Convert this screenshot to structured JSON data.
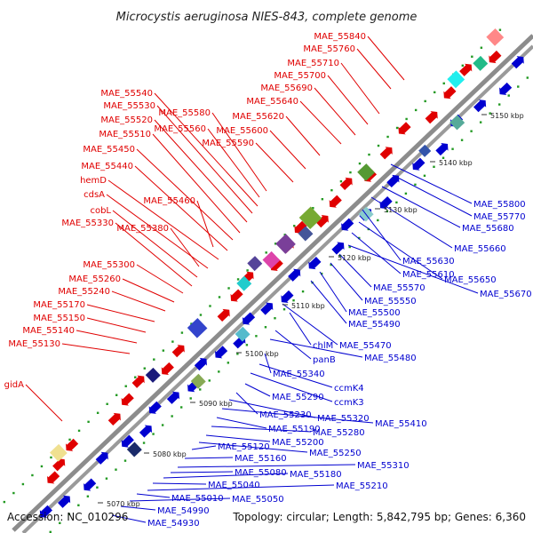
{
  "title": "Microcystis aeruginosa NIES-843, complete genome",
  "accession": "Accession: NC_010296",
  "summary": "Topology: circular; Length: 5,842,795 bp; Genes: 6,360",
  "colors": {
    "upper": "#e00000",
    "lower": "#0000d0",
    "axis": "#888888",
    "dots": "#229922"
  },
  "ticks": [
    "5070 kbp",
    "5080 kbp",
    "5090 kbp",
    "5100 kbp",
    "5110 kbp",
    "5120 kbp",
    "5130 kbp",
    "5140 kbp",
    "5150 kbp"
  ],
  "upper_labels": [
    {
      "name": "MAE_55840"
    },
    {
      "name": "MAE_55760"
    },
    {
      "name": "MAE_55710"
    },
    {
      "name": "MAE_55700"
    },
    {
      "name": "MAE_55690"
    },
    {
      "name": "MAE_55640"
    },
    {
      "name": "MAE_55620"
    },
    {
      "name": "MAE_55600"
    },
    {
      "name": "MAE_55590"
    },
    {
      "name": "MAE_55580"
    },
    {
      "name": "MAE_55560"
    },
    {
      "name": "MAE_55540"
    },
    {
      "name": "MAE_55530"
    },
    {
      "name": "MAE_55520"
    },
    {
      "name": "MAE_55510"
    },
    {
      "name": "MAE_55450"
    },
    {
      "name": "MAE_55440"
    },
    {
      "name": "hemD"
    },
    {
      "name": "cdsA"
    },
    {
      "name": "MAE_55460"
    },
    {
      "name": "cobL"
    },
    {
      "name": "MAE_55330"
    },
    {
      "name": "MAE_55380"
    },
    {
      "name": "MAE_55300"
    },
    {
      "name": "MAE_55260"
    },
    {
      "name": "MAE_55240"
    },
    {
      "name": "MAE_55170"
    },
    {
      "name": "MAE_55150"
    },
    {
      "name": "MAE_55140"
    },
    {
      "name": "MAE_55130"
    },
    {
      "name": "gidA"
    }
  ],
  "lower_labels": [
    {
      "name": "MAE_55800"
    },
    {
      "name": "MAE_55770"
    },
    {
      "name": "MAE_55680"
    },
    {
      "name": "MAE_55660"
    },
    {
      "name": "MAE_55630"
    },
    {
      "name": "MAE_55650"
    },
    {
      "name": "MAE_55610"
    },
    {
      "name": "MAE_55670"
    },
    {
      "name": "MAE_55570"
    },
    {
      "name": "MAE_55550"
    },
    {
      "name": "MAE_55500"
    },
    {
      "name": "MAE_55490"
    },
    {
      "name": "chlM"
    },
    {
      "name": "MAE_55470"
    },
    {
      "name": "panB"
    },
    {
      "name": "MAE_55480"
    },
    {
      "name": "MAE_55340"
    },
    {
      "name": "ccmK4"
    },
    {
      "name": "ccmK3"
    },
    {
      "name": "MAE_55290"
    },
    {
      "name": "MAE_55230"
    },
    {
      "name": "MAE_55320"
    },
    {
      "name": "MAE_55410"
    },
    {
      "name": "MAE_55190"
    },
    {
      "name": "MAE_55280"
    },
    {
      "name": "MAE_55200"
    },
    {
      "name": "MAE_55250"
    },
    {
      "name": "MAE_55120"
    },
    {
      "name": "MAE_55160"
    },
    {
      "name": "MAE_55310"
    },
    {
      "name": "MAE_55080"
    },
    {
      "name": "MAE_55180"
    },
    {
      "name": "MAE_55040"
    },
    {
      "name": "MAE_55210"
    },
    {
      "name": "MAE_55010"
    },
    {
      "name": "MAE_55050"
    },
    {
      "name": "MAE_54990"
    },
    {
      "name": "MAE_54930"
    }
  ]
}
